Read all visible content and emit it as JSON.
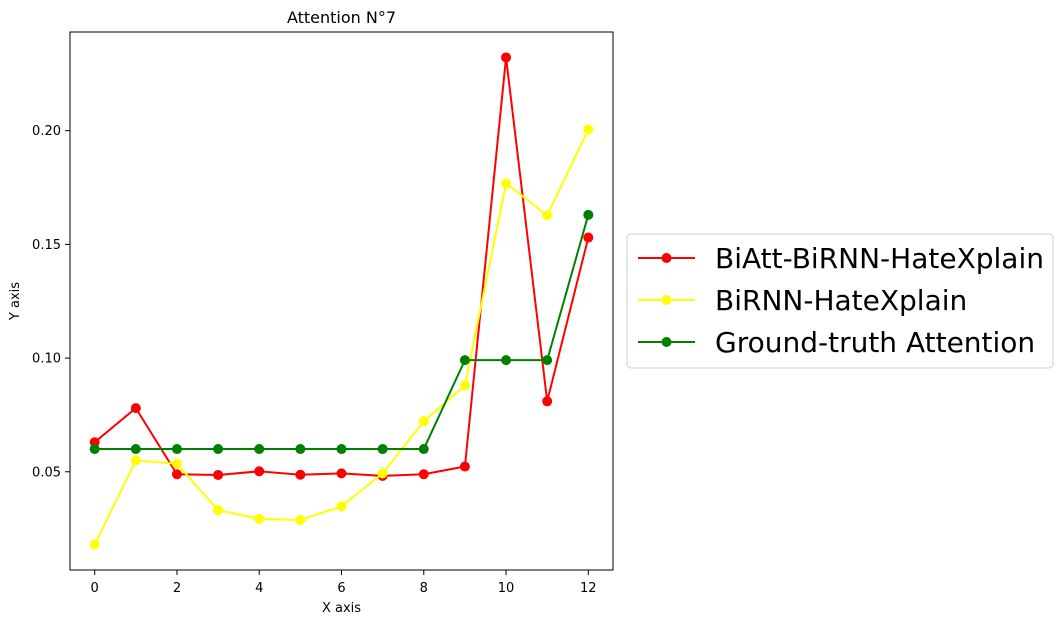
{
  "chart_data": {
    "type": "line",
    "title": "Attention N°7",
    "xlabel": "X axis",
    "ylabel": "Y axis",
    "x": [
      0,
      1,
      2,
      3,
      4,
      5,
      6,
      7,
      8,
      9,
      10,
      11,
      12
    ],
    "xlim": [
      -0.6,
      12.6
    ],
    "ylim": [
      0.0068,
      0.2434
    ],
    "xticks": [
      0,
      2,
      4,
      6,
      8,
      10,
      12
    ],
    "yticks": [
      0.05,
      0.1,
      0.15,
      0.2
    ],
    "xtick_labels": [
      "0",
      "2",
      "4",
      "6",
      "8",
      "10",
      "12"
    ],
    "ytick_labels": [
      "0.05",
      "0.10",
      "0.15",
      "0.20"
    ],
    "grid": false,
    "legend_position": "outside-right",
    "series": [
      {
        "name": "BiAtt-BiRNN-HateXplain",
        "color": "#ff0000",
        "marker": "circle",
        "values": [
          0.063,
          0.078,
          0.0489,
          0.0486,
          0.0502,
          0.0487,
          0.0493,
          0.0482,
          0.0489,
          0.0523,
          0.2322,
          0.081,
          0.153
        ]
      },
      {
        "name": "BiRNN-HateXplain",
        "color": "#ffff00",
        "marker": "circle",
        "values": [
          0.018,
          0.055,
          0.0535,
          0.0331,
          0.0293,
          0.0288,
          0.0348,
          0.0493,
          0.0722,
          0.088,
          0.1768,
          0.1628,
          0.2005
        ]
      },
      {
        "name": "Ground-truth Attention",
        "color": "#008000",
        "marker": "circle",
        "values": [
          0.06,
          0.06,
          0.06,
          0.06,
          0.06,
          0.06,
          0.06,
          0.06,
          0.06,
          0.0991,
          0.0991,
          0.0991,
          0.163
        ]
      }
    ]
  }
}
